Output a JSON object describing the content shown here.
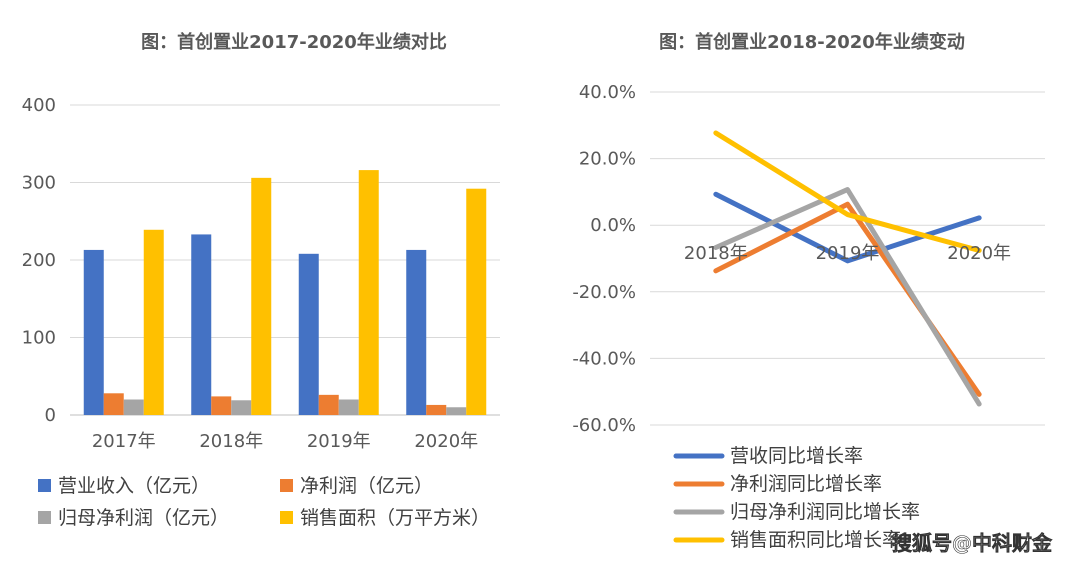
{
  "colors": {
    "blue": "#4472C4",
    "orange": "#ED7D31",
    "gray": "#A5A5A5",
    "yellow": "#FFC000",
    "grid": "#D9D9D9",
    "text": "#595959"
  },
  "watermark": "搜狐号@中科财金",
  "chart_data": [
    {
      "type": "bar",
      "title": "图：首创置业2017-2020年业绩对比",
      "categories": [
        "2017年",
        "2018年",
        "2019年",
        "2020年"
      ],
      "ylim": [
        0,
        400
      ],
      "yticks": [
        0,
        100,
        200,
        300,
        400
      ],
      "series": [
        {
          "name": "营业收入（亿元）",
          "color": "#4472C4",
          "values": [
            213,
            233,
            208,
            213
          ]
        },
        {
          "name": "净利润（亿元）",
          "color": "#ED7D31",
          "values": [
            28,
            24,
            26,
            13
          ]
        },
        {
          "name": "归母净利润（亿元）",
          "color": "#A5A5A5",
          "values": [
            20,
            19,
            20,
            10
          ]
        },
        {
          "name": "销售面积（万平方米）",
          "color": "#FFC000",
          "values": [
            239,
            306,
            316,
            292
          ]
        }
      ]
    },
    {
      "type": "line",
      "title": "图：首创置业2018-2020年业绩变动",
      "categories": [
        "2018年",
        "2019年",
        "2020年"
      ],
      "ylim": [
        -0.6,
        0.4
      ],
      "yticks": [
        -0.6,
        -0.4,
        -0.2,
        0,
        0.2,
        0.4
      ],
      "ytick_labels": [
        "-60.0%",
        "-40.0%",
        "-20.0%",
        "0.0%",
        "20.0%",
        "40.0%"
      ],
      "series": [
        {
          "name": "营收同比增长率",
          "color": "#4472C4",
          "values": [
            0.093,
            -0.107,
            0.022
          ]
        },
        {
          "name": "净利润同比增长率",
          "color": "#ED7D31",
          "values": [
            -0.137,
            0.063,
            -0.508
          ]
        },
        {
          "name": "归母净利润同比增长率",
          "color": "#A5A5A5",
          "values": [
            -0.067,
            0.107,
            -0.537
          ]
        },
        {
          "name": "销售面积同比增长率",
          "color": "#FFC000",
          "values": [
            0.277,
            0.032,
            -0.076
          ]
        }
      ]
    }
  ]
}
